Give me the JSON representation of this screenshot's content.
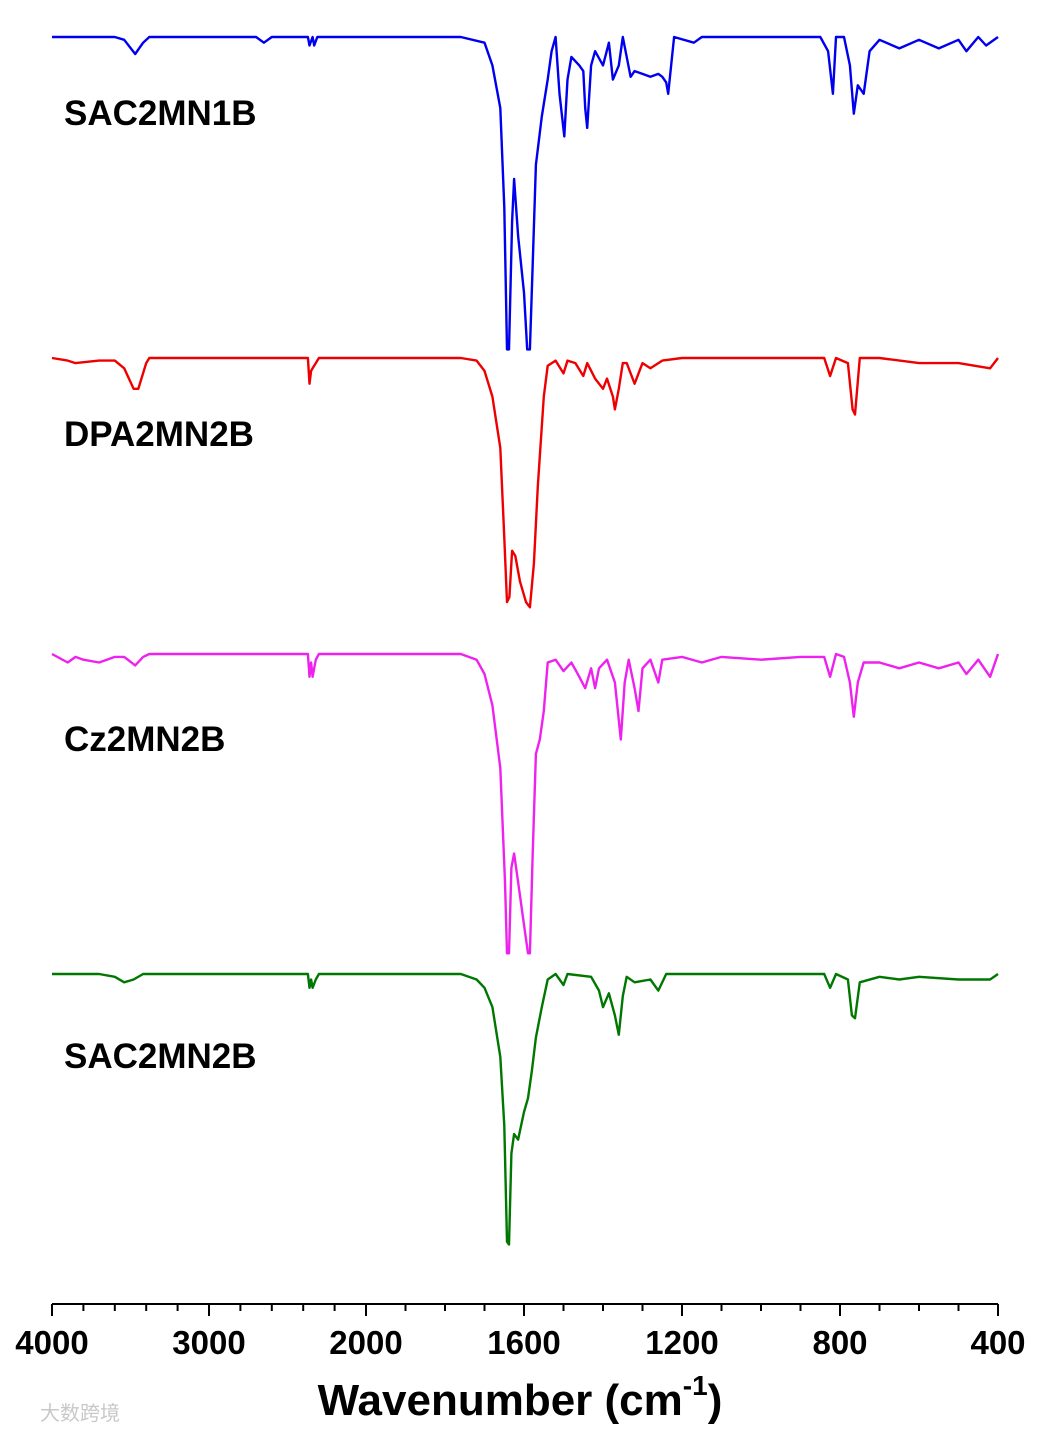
{
  "chart_data": {
    "type": "line",
    "xlabel": "Wavenumber (cm",
    "xlabel_sup": "-1",
    "xlabel_close": ")",
    "xlim": [
      4000,
      400
    ],
    "x_scale": "FTIR (split: 4000-2000 compressed, 2000-400 expanded)",
    "ticks": [
      4000,
      3000,
      2000,
      1600,
      1200,
      800,
      400
    ],
    "tick_labels": [
      "4000",
      "3000",
      "2000",
      "1600",
      "1200",
      "800",
      "400"
    ],
    "yaxis": "none (stacked, offset transmittance traces)",
    "grid": false,
    "legend": "none (labels placed beside each trace)",
    "watermark": "大数跨境",
    "series": [
      {
        "name": "SAC2MN1B",
        "color": "#0000ee",
        "points": [
          [
            4000,
            1
          ],
          [
            3600,
            1
          ],
          [
            3540,
            0.99
          ],
          [
            3470,
            0.94
          ],
          [
            3420,
            0.98
          ],
          [
            3380,
            1
          ],
          [
            2700,
            1
          ],
          [
            2650,
            0.98
          ],
          [
            2600,
            1
          ],
          [
            2370,
            1
          ],
          [
            2360,
            0.97
          ],
          [
            2340,
            1
          ],
          [
            2330,
            0.97
          ],
          [
            2310,
            1
          ],
          [
            1760,
            1
          ],
          [
            1700,
            0.98
          ],
          [
            1680,
            0.9
          ],
          [
            1660,
            0.75
          ],
          [
            1650,
            0.4
          ],
          [
            1643,
            -0.1
          ],
          [
            1638,
            -0.1
          ],
          [
            1630,
            0.35
          ],
          [
            1625,
            0.5
          ],
          [
            1615,
            0.3
          ],
          [
            1600,
            0.1
          ],
          [
            1592,
            -0.1
          ],
          [
            1585,
            -0.1
          ],
          [
            1578,
            0.2
          ],
          [
            1570,
            0.55
          ],
          [
            1555,
            0.72
          ],
          [
            1540,
            0.85
          ],
          [
            1530,
            0.95
          ],
          [
            1520,
            1
          ],
          [
            1510,
            0.8
          ],
          [
            1498,
            0.65
          ],
          [
            1490,
            0.85
          ],
          [
            1480,
            0.93
          ],
          [
            1460,
            0.9
          ],
          [
            1450,
            0.88
          ],
          [
            1445,
            0.75
          ],
          [
            1440,
            0.68
          ],
          [
            1430,
            0.9
          ],
          [
            1420,
            0.95
          ],
          [
            1400,
            0.9
          ],
          [
            1385,
            0.98
          ],
          [
            1375,
            0.85
          ],
          [
            1360,
            0.9
          ],
          [
            1350,
            1
          ],
          [
            1330,
            0.86
          ],
          [
            1320,
            0.88
          ],
          [
            1300,
            0.87
          ],
          [
            1280,
            0.86
          ],
          [
            1260,
            0.87
          ],
          [
            1250,
            0.86
          ],
          [
            1240,
            0.84
          ],
          [
            1235,
            0.8
          ],
          [
            1220,
            1
          ],
          [
            1170,
            0.98
          ],
          [
            1150,
            1
          ],
          [
            1000,
            1
          ],
          [
            850,
            1
          ],
          [
            830,
            0.95
          ],
          [
            818,
            0.8
          ],
          [
            810,
            1
          ],
          [
            790,
            1
          ],
          [
            775,
            0.9
          ],
          [
            765,
            0.73
          ],
          [
            755,
            0.83
          ],
          [
            740,
            0.8
          ],
          [
            725,
            0.95
          ],
          [
            700,
            0.99
          ],
          [
            650,
            0.96
          ],
          [
            600,
            0.99
          ],
          [
            550,
            0.96
          ],
          [
            500,
            0.99
          ],
          [
            480,
            0.95
          ],
          [
            450,
            1
          ],
          [
            430,
            0.97
          ],
          [
            400,
            1
          ]
        ]
      },
      {
        "name": "DPA2MN2B",
        "color": "#ee0000",
        "points": [
          [
            4000,
            1
          ],
          [
            3900,
            0.99
          ],
          [
            3850,
            0.98
          ],
          [
            3700,
            0.99
          ],
          [
            3600,
            0.99
          ],
          [
            3540,
            0.96
          ],
          [
            3480,
            0.88
          ],
          [
            3450,
            0.88
          ],
          [
            3400,
            0.98
          ],
          [
            3380,
            1
          ],
          [
            2400,
            1
          ],
          [
            2370,
            1
          ],
          [
            2360,
            0.9
          ],
          [
            2350,
            0.95
          ],
          [
            2340,
            0.96
          ],
          [
            2320,
            0.98
          ],
          [
            2300,
            1
          ],
          [
            1760,
            1
          ],
          [
            1720,
            0.99
          ],
          [
            1700,
            0.95
          ],
          [
            1680,
            0.85
          ],
          [
            1660,
            0.65
          ],
          [
            1650,
            0.3
          ],
          [
            1643,
            0.05
          ],
          [
            1637,
            0.07
          ],
          [
            1630,
            0.25
          ],
          [
            1622,
            0.23
          ],
          [
            1610,
            0.13
          ],
          [
            1595,
            0.05
          ],
          [
            1585,
            0.03
          ],
          [
            1575,
            0.2
          ],
          [
            1565,
            0.5
          ],
          [
            1550,
            0.85
          ],
          [
            1540,
            0.97
          ],
          [
            1520,
            0.99
          ],
          [
            1500,
            0.94
          ],
          [
            1490,
            0.99
          ],
          [
            1470,
            0.98
          ],
          [
            1450,
            0.93
          ],
          [
            1440,
            0.98
          ],
          [
            1420,
            0.92
          ],
          [
            1400,
            0.88
          ],
          [
            1390,
            0.92
          ],
          [
            1375,
            0.85
          ],
          [
            1370,
            0.8
          ],
          [
            1360,
            0.88
          ],
          [
            1350,
            0.98
          ],
          [
            1340,
            0.98
          ],
          [
            1320,
            0.9
          ],
          [
            1300,
            0.98
          ],
          [
            1280,
            0.96
          ],
          [
            1250,
            0.99
          ],
          [
            1200,
            1
          ],
          [
            900,
            1
          ],
          [
            840,
            1
          ],
          [
            825,
            0.93
          ],
          [
            810,
            1
          ],
          [
            780,
            0.98
          ],
          [
            768,
            0.8
          ],
          [
            762,
            0.78
          ],
          [
            750,
            1
          ],
          [
            700,
            1
          ],
          [
            600,
            0.98
          ],
          [
            500,
            0.98
          ],
          [
            420,
            0.96
          ],
          [
            400,
            1
          ]
        ]
      },
      {
        "name": "Cz2MN2B",
        "color": "#ee22ee",
        "points": [
          [
            4000,
            1
          ],
          [
            3900,
            0.97
          ],
          [
            3850,
            0.99
          ],
          [
            3800,
            0.98
          ],
          [
            3700,
            0.97
          ],
          [
            3600,
            0.99
          ],
          [
            3540,
            0.99
          ],
          [
            3470,
            0.96
          ],
          [
            3420,
            0.99
          ],
          [
            3380,
            1
          ],
          [
            2400,
            1
          ],
          [
            2370,
            1
          ],
          [
            2360,
            0.92
          ],
          [
            2350,
            0.97
          ],
          [
            2340,
            0.92
          ],
          [
            2320,
            0.98
          ],
          [
            2300,
            1
          ],
          [
            1760,
            1
          ],
          [
            1720,
            0.98
          ],
          [
            1700,
            0.93
          ],
          [
            1680,
            0.82
          ],
          [
            1660,
            0.6
          ],
          [
            1648,
            0.2
          ],
          [
            1643,
            -0.05
          ],
          [
            1638,
            -0.05
          ],
          [
            1632,
            0.25
          ],
          [
            1625,
            0.3
          ],
          [
            1615,
            0.2
          ],
          [
            1600,
            0.05
          ],
          [
            1590,
            -0.05
          ],
          [
            1585,
            -0.05
          ],
          [
            1578,
            0.3
          ],
          [
            1570,
            0.65
          ],
          [
            1560,
            0.7
          ],
          [
            1550,
            0.8
          ],
          [
            1540,
            0.97
          ],
          [
            1520,
            0.98
          ],
          [
            1500,
            0.94
          ],
          [
            1480,
            0.97
          ],
          [
            1460,
            0.92
          ],
          [
            1445,
            0.88
          ],
          [
            1430,
            0.95
          ],
          [
            1420,
            0.88
          ],
          [
            1410,
            0.95
          ],
          [
            1390,
            0.98
          ],
          [
            1370,
            0.9
          ],
          [
            1355,
            0.7
          ],
          [
            1345,
            0.9
          ],
          [
            1335,
            0.98
          ],
          [
            1320,
            0.88
          ],
          [
            1310,
            0.8
          ],
          [
            1300,
            0.95
          ],
          [
            1280,
            0.98
          ],
          [
            1260,
            0.9
          ],
          [
            1250,
            0.98
          ],
          [
            1200,
            0.99
          ],
          [
            1150,
            0.97
          ],
          [
            1100,
            0.99
          ],
          [
            1000,
            0.98
          ],
          [
            900,
            0.99
          ],
          [
            840,
            0.99
          ],
          [
            825,
            0.92
          ],
          [
            810,
            1
          ],
          [
            790,
            0.99
          ],
          [
            775,
            0.9
          ],
          [
            765,
            0.78
          ],
          [
            755,
            0.9
          ],
          [
            740,
            0.97
          ],
          [
            700,
            0.97
          ],
          [
            650,
            0.95
          ],
          [
            600,
            0.97
          ],
          [
            550,
            0.95
          ],
          [
            500,
            0.97
          ],
          [
            480,
            0.93
          ],
          [
            450,
            0.98
          ],
          [
            420,
            0.92
          ],
          [
            400,
            1
          ]
        ]
      },
      {
        "name": "SAC2MN2B",
        "color": "#007700",
        "points": [
          [
            4000,
            1
          ],
          [
            3700,
            1
          ],
          [
            3600,
            0.99
          ],
          [
            3540,
            0.97
          ],
          [
            3480,
            0.98
          ],
          [
            3420,
            1
          ],
          [
            2400,
            1
          ],
          [
            2370,
            1
          ],
          [
            2360,
            0.95
          ],
          [
            2350,
            0.98
          ],
          [
            2340,
            0.95
          ],
          [
            2320,
            0.98
          ],
          [
            2300,
            1
          ],
          [
            1760,
            1
          ],
          [
            1720,
            0.98
          ],
          [
            1700,
            0.95
          ],
          [
            1680,
            0.88
          ],
          [
            1660,
            0.7
          ],
          [
            1650,
            0.45
          ],
          [
            1643,
            0.03
          ],
          [
            1638,
            0.02
          ],
          [
            1632,
            0.35
          ],
          [
            1625,
            0.42
          ],
          [
            1615,
            0.4
          ],
          [
            1600,
            0.5
          ],
          [
            1590,
            0.55
          ],
          [
            1580,
            0.65
          ],
          [
            1570,
            0.77
          ],
          [
            1555,
            0.88
          ],
          [
            1540,
            0.98
          ],
          [
            1520,
            1
          ],
          [
            1500,
            0.96
          ],
          [
            1490,
            1
          ],
          [
            1430,
            0.99
          ],
          [
            1410,
            0.94
          ],
          [
            1400,
            0.88
          ],
          [
            1385,
            0.93
          ],
          [
            1370,
            0.85
          ],
          [
            1360,
            0.78
          ],
          [
            1350,
            0.92
          ],
          [
            1340,
            0.99
          ],
          [
            1320,
            0.97
          ],
          [
            1280,
            0.98
          ],
          [
            1260,
            0.94
          ],
          [
            1240,
            1
          ],
          [
            1200,
            1
          ],
          [
            900,
            1
          ],
          [
            840,
            1
          ],
          [
            825,
            0.95
          ],
          [
            810,
            1
          ],
          [
            780,
            0.98
          ],
          [
            770,
            0.85
          ],
          [
            762,
            0.84
          ],
          [
            750,
            0.97
          ],
          [
            700,
            0.99
          ],
          [
            650,
            0.98
          ],
          [
            600,
            0.99
          ],
          [
            500,
            0.98
          ],
          [
            420,
            0.98
          ],
          [
            400,
            1
          ]
        ]
      }
    ]
  }
}
